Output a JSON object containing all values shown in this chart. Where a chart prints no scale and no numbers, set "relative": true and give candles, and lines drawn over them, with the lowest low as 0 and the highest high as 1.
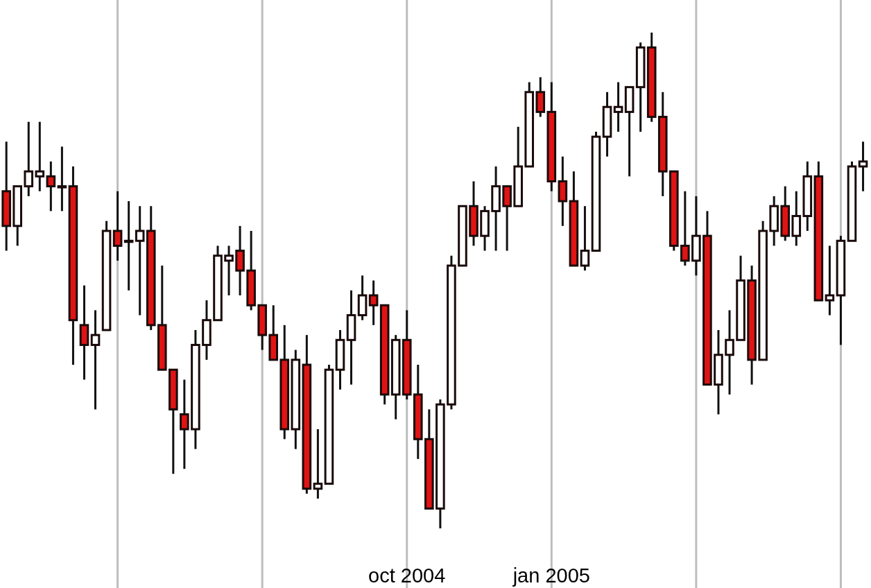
{
  "chart_data": {
    "type": "candlestick",
    "relative": true,
    "grid": "x",
    "xlim": [
      "2004-01-22",
      "2005-07-23"
    ],
    "xticks": [
      {
        "value": "2004-04-05",
        "label": null
      },
      {
        "value": "2004-07-05",
        "label": null
      },
      {
        "value": "2004-10-04",
        "label": "oct 2004"
      },
      {
        "value": "2005-01-03",
        "label": "jan 2005"
      },
      {
        "value": "2005-04-04",
        "label": null
      },
      {
        "value": "2005-07-04",
        "label": null
      }
    ],
    "series": [
      {
        "colors": [
          "#e01414",
          "#ffffff",
          "#ffffff",
          "#ffffff",
          "#e01414",
          "#ffffff",
          "#e01414",
          "#e01414",
          "#ffffff",
          "#ffffff",
          "#e01414",
          "#ffffff",
          "#ffffff",
          "#e01414",
          "#e01414",
          "#e01414",
          "#e01414",
          "#ffffff",
          "#ffffff",
          "#ffffff",
          "#ffffff",
          "#e01414",
          "#e01414",
          "#e01414",
          "#e01414",
          "#e01414",
          "#ffffff",
          "#e01414",
          "#ffffff",
          "#ffffff",
          "#ffffff",
          "#ffffff",
          "#ffffff",
          "#e01414",
          "#e01414",
          "#ffffff",
          "#e01414",
          "#e01414",
          "#e01414",
          "#ffffff",
          "#ffffff",
          "#ffffff",
          "#e01414",
          "#ffffff",
          "#ffffff",
          "#e01414",
          "#ffffff",
          "#ffffff",
          "#e01414",
          "#e01414",
          "#e01414",
          "#e01414",
          "#ffffff",
          "#ffffff",
          "#ffffff",
          "#ffffff",
          "#ffffff",
          "#ffffff",
          "#e01414",
          "#e01414",
          "#e01414",
          "#e01414",
          "#ffffff",
          "#e01414",
          "#ffffff",
          "#ffffff",
          "#ffffff",
          "#e01414",
          "#ffffff",
          "#ffffff",
          "#e01414",
          "#ffffff",
          "#ffffff",
          "#e01414",
          "#ffffff",
          "#ffffff",
          "#ffffff",
          "#ffffff"
        ],
        "x": [
          "2004-01-26",
          "2004-02-02",
          "2004-02-09",
          "2004-02-16",
          "2004-02-23",
          "2004-03-01",
          "2004-03-08",
          "2004-03-15",
          "2004-03-22",
          "2004-03-29",
          "2004-04-05",
          "2004-04-12",
          "2004-04-19",
          "2004-04-26",
          "2004-05-03",
          "2004-05-10",
          "2004-05-17",
          "2004-05-24",
          "2004-05-31",
          "2004-06-07",
          "2004-06-14",
          "2004-06-21",
          "2004-06-28",
          "2004-07-05",
          "2004-07-12",
          "2004-07-19",
          "2004-07-26",
          "2004-08-02",
          "2004-08-09",
          "2004-08-16",
          "2004-08-23",
          "2004-08-30",
          "2004-09-06",
          "2004-09-13",
          "2004-09-20",
          "2004-09-27",
          "2004-10-04",
          "2004-10-11",
          "2004-10-18",
          "2004-10-25",
          "2004-11-01",
          "2004-11-08",
          "2004-11-15",
          "2004-11-22",
          "2004-11-29",
          "2004-12-06",
          "2004-12-13",
          "2004-12-20",
          "2004-12-27",
          "2005-01-03",
          "2005-01-10",
          "2005-01-17",
          "2005-01-24",
          "2005-01-31",
          "2005-02-07",
          "2005-02-14",
          "2005-02-21",
          "2005-02-28",
          "2005-03-07",
          "2005-03-14",
          "2005-03-21",
          "2005-03-28",
          "2005-04-04",
          "2005-04-11",
          "2005-04-18",
          "2005-04-25",
          "2005-05-02",
          "2005-05-09",
          "2005-05-16",
          "2005-05-23",
          "2005-05-30",
          "2005-06-06",
          "2005-06-13",
          "2005-06-20",
          "2005-06-27",
          "2005-07-04",
          "2005-07-11",
          "2005-07-18"
        ],
        "ohlc": [
          [
            0.68,
            0.78,
            0.56,
            0.61
          ],
          [
            0.61,
            0.69,
            0.57,
            0.69
          ],
          [
            0.69,
            0.82,
            0.67,
            0.72
          ],
          [
            0.71,
            0.82,
            0.68,
            0.72
          ],
          [
            0.71,
            0.74,
            0.64,
            0.69
          ],
          [
            0.69,
            0.77,
            0.64,
            0.69
          ],
          [
            0.69,
            0.73,
            0.33,
            0.42
          ],
          [
            0.41,
            0.49,
            0.3,
            0.37
          ],
          [
            0.37,
            0.44,
            0.24,
            0.39
          ],
          [
            0.4,
            0.62,
            0.4,
            0.6
          ],
          [
            0.6,
            0.68,
            0.54,
            0.57
          ],
          [
            0.58,
            0.66,
            0.48,
            0.58
          ],
          [
            0.58,
            0.65,
            0.43,
            0.6
          ],
          [
            0.6,
            0.65,
            0.4,
            0.41
          ],
          [
            0.41,
            0.53,
            0.32,
            0.32
          ],
          [
            0.32,
            0.32,
            0.11,
            0.24
          ],
          [
            0.23,
            0.3,
            0.12,
            0.2
          ],
          [
            0.2,
            0.4,
            0.16,
            0.37
          ],
          [
            0.37,
            0.46,
            0.34,
            0.42
          ],
          [
            0.42,
            0.57,
            0.42,
            0.55
          ],
          [
            0.54,
            0.57,
            0.47,
            0.55
          ],
          [
            0.56,
            0.61,
            0.47,
            0.52
          ],
          [
            0.52,
            0.6,
            0.44,
            0.45
          ],
          [
            0.45,
            0.45,
            0.36,
            0.39
          ],
          [
            0.39,
            0.45,
            0.34,
            0.34
          ],
          [
            0.34,
            0.41,
            0.18,
            0.2
          ],
          [
            0.2,
            0.36,
            0.16,
            0.34
          ],
          [
            0.33,
            0.39,
            0.07,
            0.08
          ],
          [
            0.08,
            0.2,
            0.06,
            0.09
          ],
          [
            0.09,
            0.33,
            0.09,
            0.32
          ],
          [
            0.32,
            0.4,
            0.28,
            0.38
          ],
          [
            0.38,
            0.48,
            0.29,
            0.43
          ],
          [
            0.43,
            0.51,
            0.42,
            0.47
          ],
          [
            0.47,
            0.5,
            0.41,
            0.45
          ],
          [
            0.45,
            0.45,
            0.25,
            0.27
          ],
          [
            0.27,
            0.39,
            0.22,
            0.38
          ],
          [
            0.38,
            0.44,
            0.26,
            0.27
          ],
          [
            0.27,
            0.33,
            0.14,
            0.18
          ],
          [
            0.18,
            0.24,
            0.04,
            0.04
          ],
          [
            0.04,
            0.26,
            0,
            0.25
          ],
          [
            0.25,
            0.55,
            0.24,
            0.53
          ],
          [
            0.53,
            0.65,
            0.53,
            0.65
          ],
          [
            0.65,
            0.7,
            0.57,
            0.59
          ],
          [
            0.59,
            0.65,
            0.56,
            0.64
          ],
          [
            0.64,
            0.73,
            0.56,
            0.69
          ],
          [
            0.69,
            0.69,
            0.56,
            0.65
          ],
          [
            0.65,
            0.81,
            0.65,
            0.73
          ],
          [
            0.73,
            0.9,
            0.73,
            0.88
          ],
          [
            0.88,
            0.91,
            0.83,
            0.84
          ],
          [
            0.84,
            0.9,
            0.68,
            0.7
          ],
          [
            0.7,
            0.75,
            0.61,
            0.66
          ],
          [
            0.66,
            0.72,
            0.53,
            0.53
          ],
          [
            0.53,
            0.65,
            0.52,
            0.56
          ],
          [
            0.56,
            0.8,
            0.56,
            0.79
          ],
          [
            0.79,
            0.88,
            0.75,
            0.85
          ],
          [
            0.84,
            0.9,
            0.8,
            0.85
          ],
          [
            0.84,
            0.89,
            0.71,
            0.89
          ],
          [
            0.89,
            0.98,
            0.8,
            0.97
          ],
          [
            0.97,
            1,
            0.82,
            0.83
          ],
          [
            0.83,
            0.88,
            0.67,
            0.72
          ],
          [
            0.72,
            0.72,
            0.56,
            0.57
          ],
          [
            0.57,
            0.68,
            0.53,
            0.54
          ],
          [
            0.54,
            0.67,
            0.51,
            0.59
          ],
          [
            0.59,
            0.64,
            0.29,
            0.29
          ],
          [
            0.29,
            0.4,
            0.23,
            0.35
          ],
          [
            0.35,
            0.44,
            0.27,
            0.38
          ],
          [
            0.38,
            0.55,
            0.38,
            0.5
          ],
          [
            0.5,
            0.53,
            0.29,
            0.34
          ],
          [
            0.34,
            0.62,
            0.34,
            0.6
          ],
          [
            0.6,
            0.67,
            0.57,
            0.65
          ],
          [
            0.65,
            0.69,
            0.58,
            0.59
          ],
          [
            0.59,
            0.68,
            0.57,
            0.63
          ],
          [
            0.63,
            0.74,
            0.6,
            0.71
          ],
          [
            0.71,
            0.74,
            0.46,
            0.46
          ],
          [
            0.46,
            0.57,
            0.43,
            0.47
          ],
          [
            0.47,
            0.59,
            0.37,
            0.58
          ],
          [
            0.58,
            0.74,
            0.58,
            0.73
          ],
          [
            0.73,
            0.78,
            0.68,
            0.74
          ]
        ]
      }
    ]
  }
}
